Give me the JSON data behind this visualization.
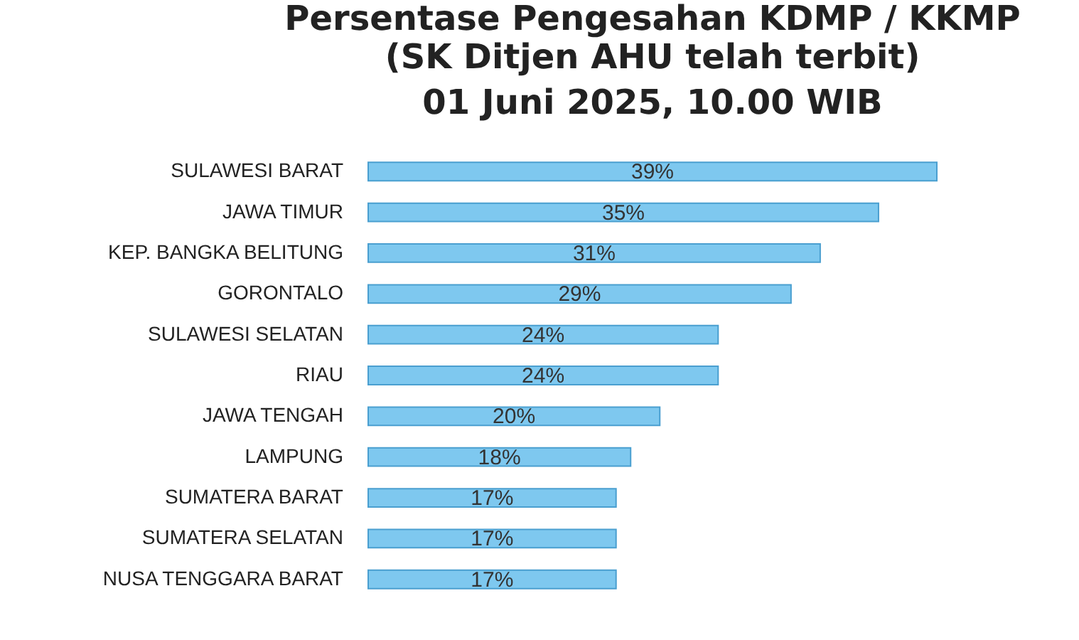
{
  "chart_data": {
    "type": "bar",
    "orientation": "horizontal",
    "title": "Persentase Pengesahan KDMP / KKMP",
    "subtitle": "(SK Ditjen AHU telah terbit)\n01 Juni 2025, 10.00 WIB",
    "categories": [
      "SULAWESI BARAT",
      "JAWA TIMUR",
      "KEP. BANGKA BELITUNG",
      "GORONTALO",
      "SULAWESI SELATAN",
      "RIAU",
      "JAWA TENGAH",
      "LAMPUNG",
      "SUMATERA BARAT",
      "SUMATERA SELATAN",
      "NUSA TENGGARA BARAT"
    ],
    "values": [
      39,
      35,
      31,
      29,
      24,
      24,
      20,
      18,
      17,
      17,
      17
    ],
    "value_labels": [
      "39%",
      "35%",
      "31%",
      "29%",
      "24%",
      "24%",
      "20%",
      "18%",
      "17%",
      "17%",
      "17%"
    ],
    "color": "#7ec8ef",
    "grid": false
  }
}
